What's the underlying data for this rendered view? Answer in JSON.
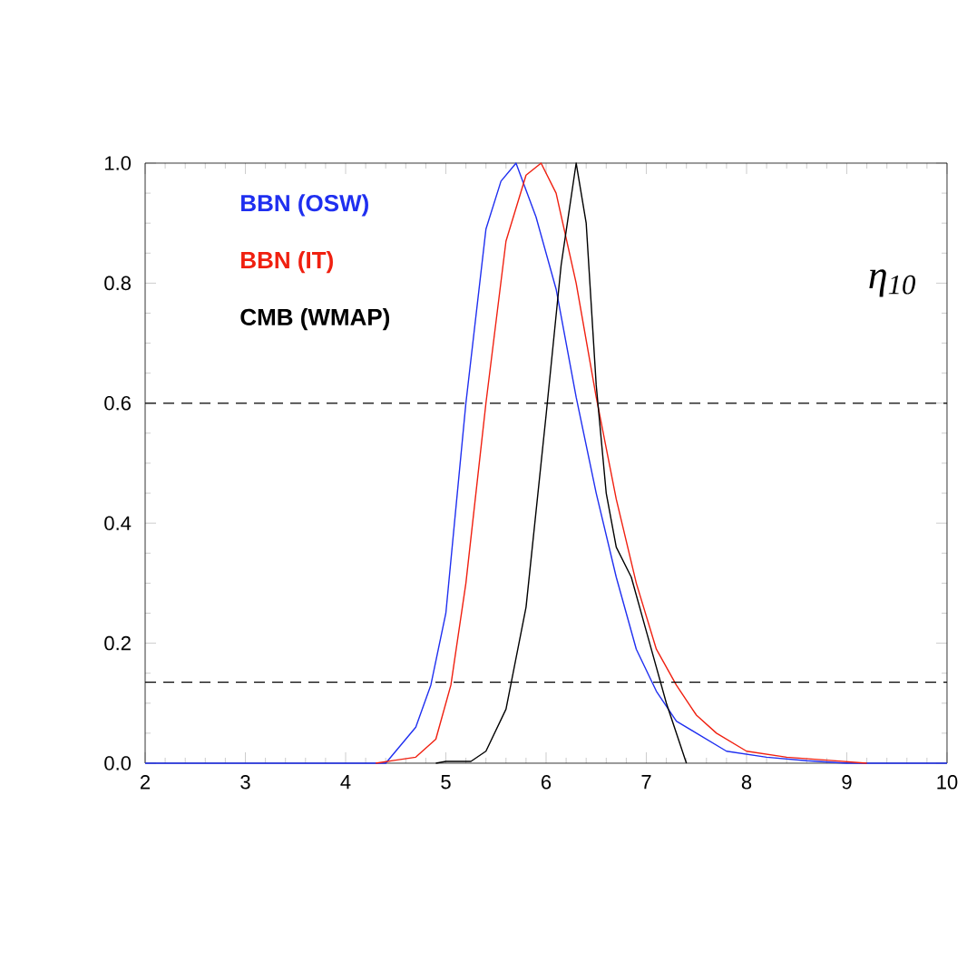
{
  "chart_data": {
    "type": "line",
    "xlim": [
      2,
      10
    ],
    "xticks": [
      2,
      3,
      4,
      5,
      6,
      7,
      8,
      9,
      10
    ],
    "ylim": [
      0,
      1
    ],
    "yticks": [
      {
        "value": 0,
        "label": "0.0"
      },
      0.2,
      0.4,
      0.6,
      0.8,
      {
        "value": 1,
        "label": "1.0"
      }
    ],
    "legend": "top left",
    "grid": false,
    "marker": "none",
    "line_style": "solid",
    "annotations": [
      "η$_{10}$"
    ],
    "ref_lines": [
      {
        "axis": "y",
        "value": 0.6,
        "line_style": "dashed",
        "color": "#000000"
      },
      {
        "axis": "y",
        "value": 0.135,
        "line_style": "dashed",
        "color": "#000000"
      }
    ],
    "series": [
      {
        "name": "BBN (OSW)",
        "color": "#1f2ff0",
        "x": [
          2,
          4.4,
          4.5,
          4.7,
          4.85,
          5.0,
          5.2,
          5.4,
          5.55,
          5.7,
          5.9,
          6.1,
          6.3,
          6.5,
          6.7,
          6.9,
          7.1,
          7.3,
          7.5,
          7.8,
          8.2,
          8.6,
          9,
          10
        ],
        "values": [
          0,
          0,
          0.02,
          0.06,
          0.13,
          0.25,
          0.6,
          0.89,
          0.97,
          1.0,
          0.91,
          0.79,
          0.61,
          0.45,
          0.31,
          0.19,
          0.12,
          0.07,
          0.05,
          0.02,
          0.01,
          0.004,
          0,
          0
        ]
      },
      {
        "name": "BBN (IT)",
        "color": "#f02010",
        "x": [
          4.3,
          4.5,
          4.7,
          4.9,
          5.05,
          5.2,
          5.4,
          5.6,
          5.8,
          5.95,
          6.1,
          6.3,
          6.5,
          6.7,
          6.9,
          7.1,
          7.3,
          7.5,
          7.7,
          8.0,
          8.4,
          8.8,
          9.2
        ],
        "values": [
          0,
          0.005,
          0.01,
          0.04,
          0.13,
          0.3,
          0.6,
          0.87,
          0.98,
          1.0,
          0.95,
          0.8,
          0.61,
          0.44,
          0.3,
          0.19,
          0.13,
          0.08,
          0.05,
          0.02,
          0.01,
          0.005,
          0
        ]
      },
      {
        "name": "CMB (WMAP)",
        "color": "#000000",
        "x": [
          4.9,
          5.0,
          5.25,
          5.4,
          5.6,
          5.8,
          6.0,
          6.15,
          6.3,
          6.4,
          6.5,
          6.6,
          6.7,
          6.85,
          7.0,
          7.2,
          7.4
        ],
        "values": [
          0,
          0.003,
          0.003,
          0.02,
          0.09,
          0.26,
          0.58,
          0.83,
          1.0,
          0.9,
          0.63,
          0.45,
          0.36,
          0.31,
          0.22,
          0.1,
          0
        ]
      }
    ]
  }
}
